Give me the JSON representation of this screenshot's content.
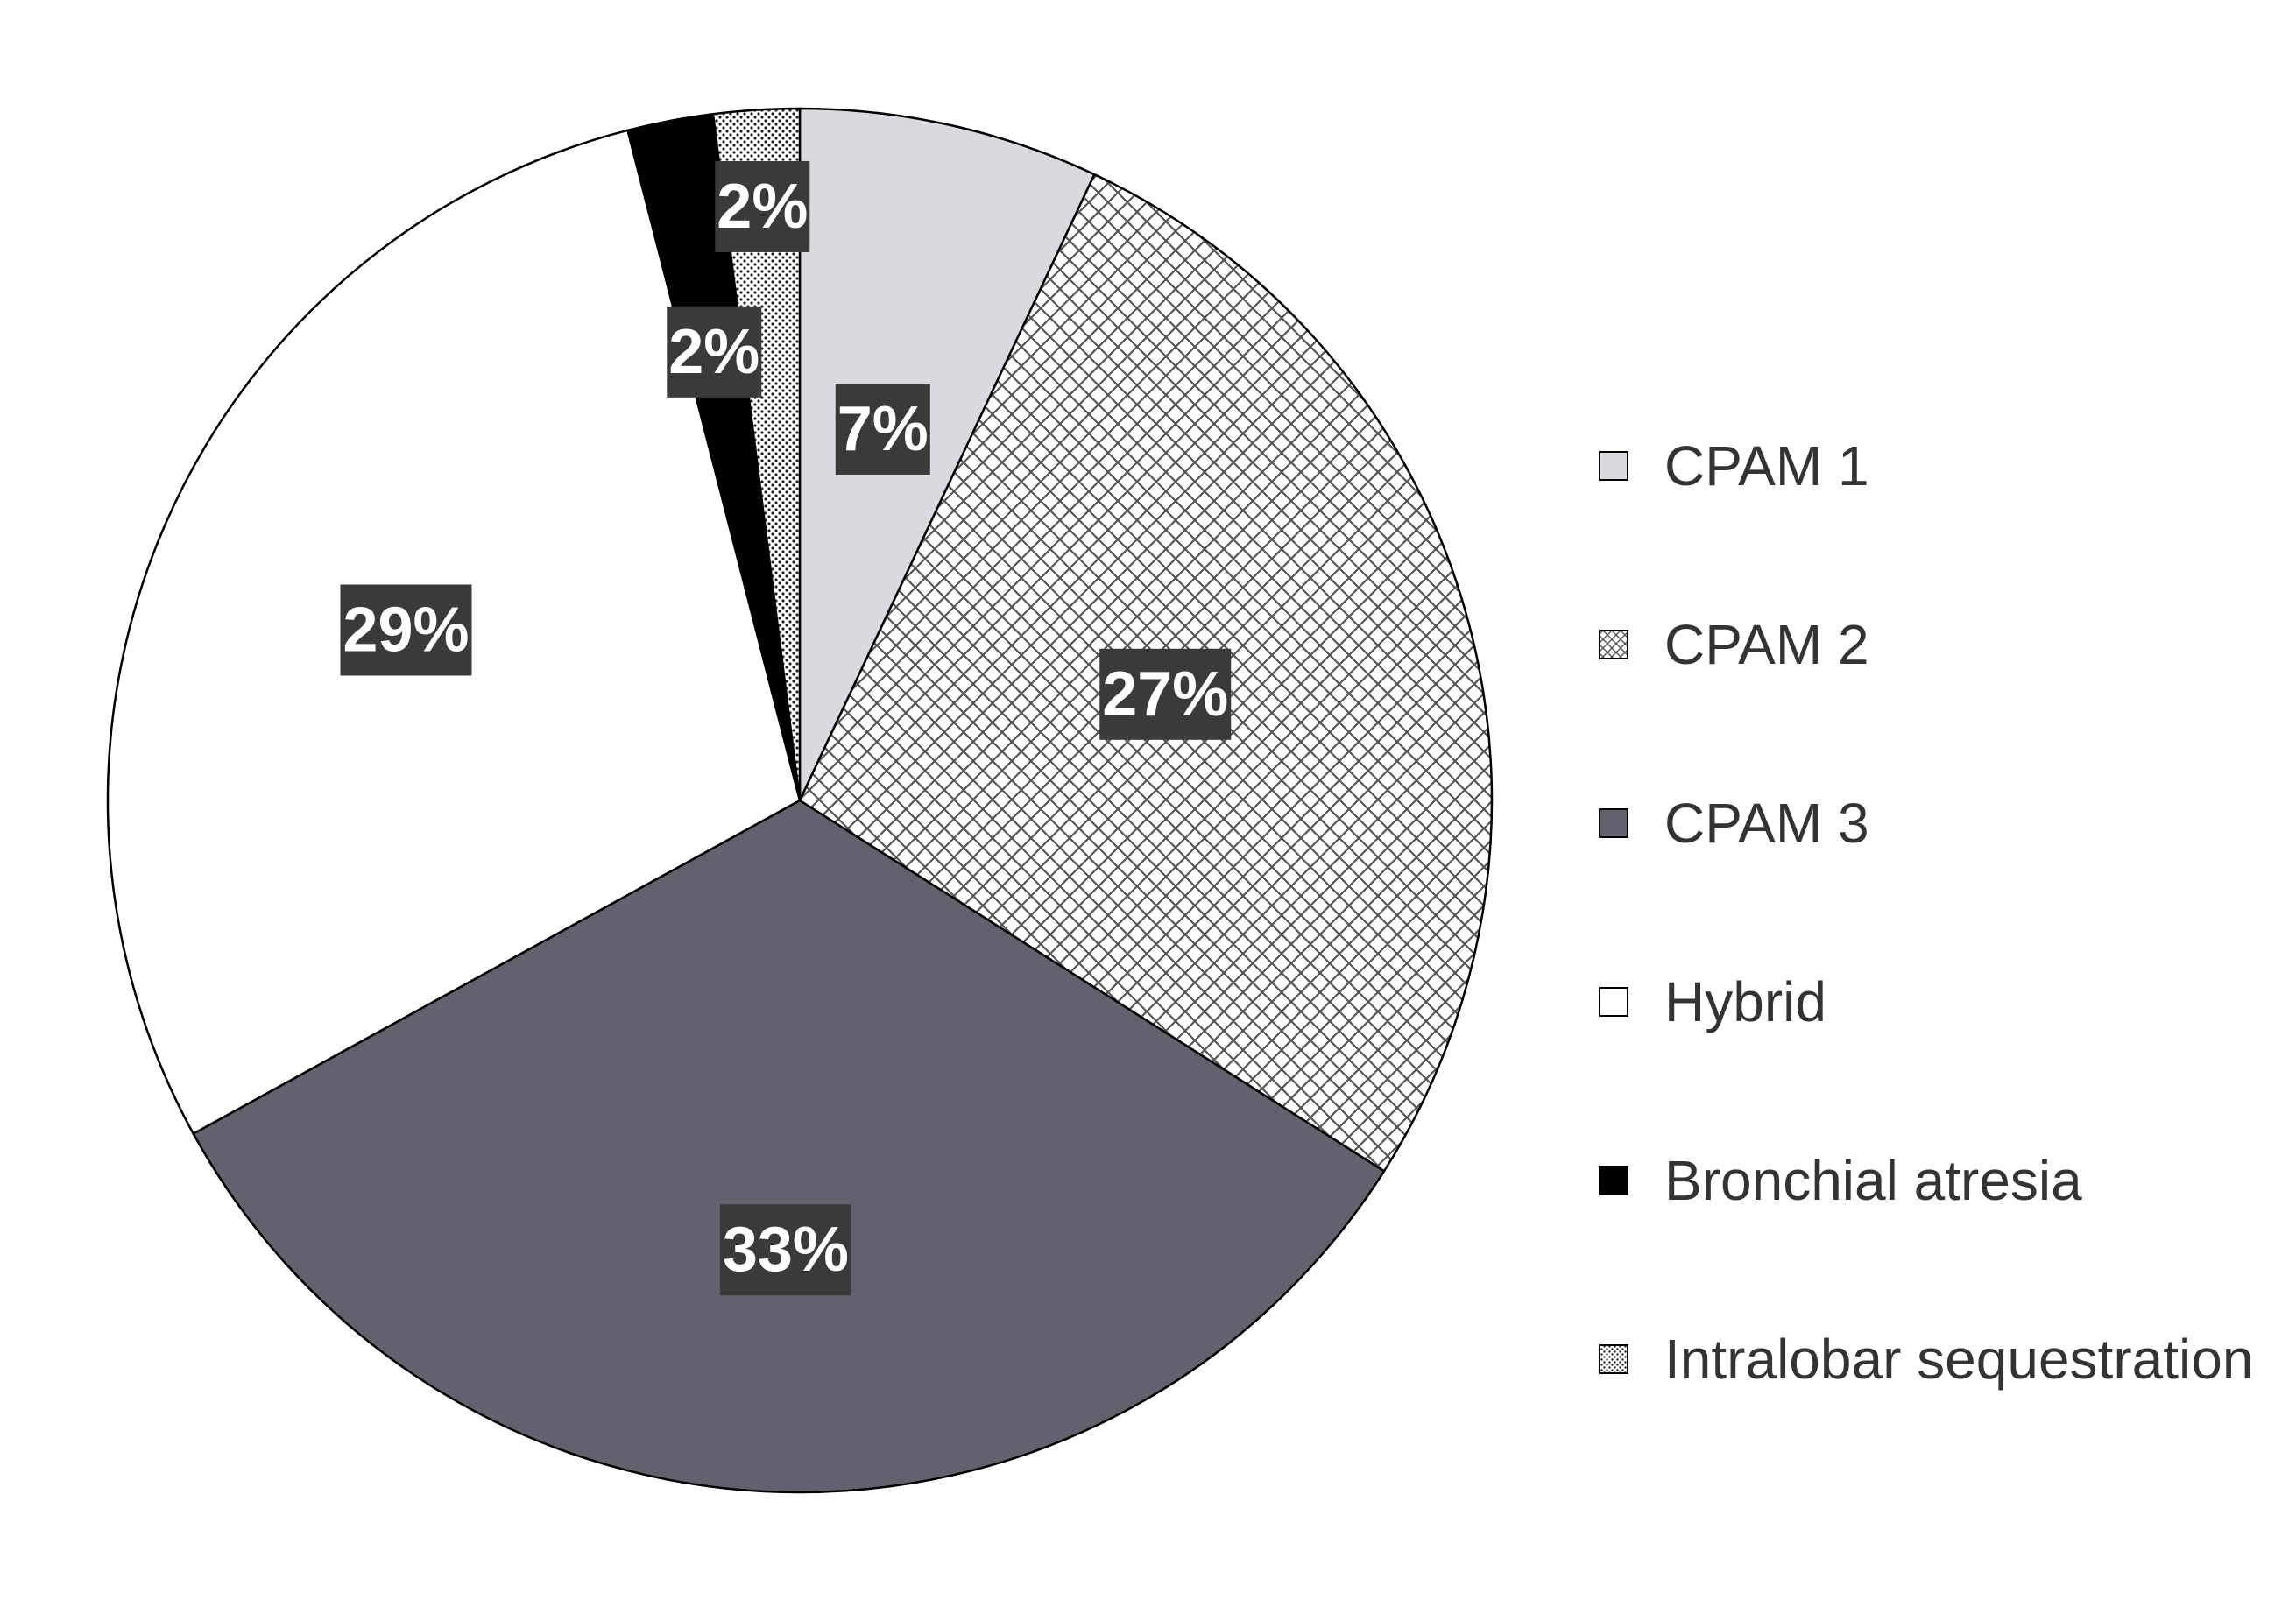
{
  "chart_data": {
    "type": "pie",
    "title": "",
    "start_angle_deg": 0,
    "direction": "clockwise",
    "legend_placement": "right",
    "slices": [
      {
        "label": "CPAM 1",
        "value": 7,
        "display": "7%",
        "fill": "#d9d9e0",
        "pattern": "solid"
      },
      {
        "label": "CPAM 2",
        "value": 27,
        "display": "27%",
        "fill": "#ffffff",
        "pattern": "crosshatch"
      },
      {
        "label": "CPAM 3",
        "value": 33,
        "display": "33%",
        "fill": "#62626e",
        "pattern": "solid"
      },
      {
        "label": "Hybrid",
        "value": 29,
        "display": "29%",
        "fill": "#ffffff",
        "pattern": "solid"
      },
      {
        "label": "Bronchial atresia",
        "value": 2,
        "display": "2%",
        "fill": "#000000",
        "pattern": "solid"
      },
      {
        "label": "Intralobar sequestration",
        "value": 2,
        "display": "2%",
        "fill": "#555555",
        "pattern": "dots"
      }
    ]
  },
  "colors": {
    "label_box": "#3a3a3a",
    "label_text": "#ffffff",
    "legend_text": "#333333",
    "outline": "#000000"
  }
}
